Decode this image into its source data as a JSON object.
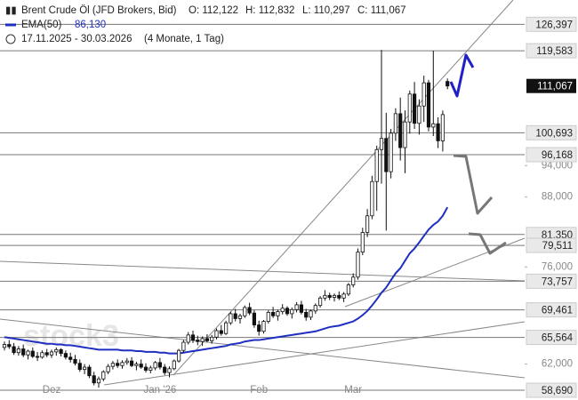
{
  "chart_data": {
    "type": "candlestick",
    "title": "Brent Crude Öl (JFD Brokers, Bid)",
    "ohlc_texts": [
      "O: 112,122",
      "H: 112,832",
      "L: 110,297",
      "C: 111,067"
    ],
    "period": "17.11.2025 - 30.03.2026",
    "period_note": "(4 Monate, 1 Tag)",
    "watermark": "stock3",
    "log_scale": true,
    "ylim": [
      57.5,
      133
    ],
    "yticks": [
      {
        "value": 94,
        "label": "94,000"
      },
      {
        "value": 88,
        "label": "88,000"
      },
      {
        "value": 76,
        "label": "76,000"
      },
      {
        "value": 62,
        "label": "62,000"
      }
    ],
    "levels": [
      {
        "value": 126.397,
        "label": "126,397"
      },
      {
        "value": 119.583,
        "label": "119,583"
      },
      {
        "value": 100.693,
        "label": "100,693"
      },
      {
        "value": 96.168,
        "label": "96,168"
      },
      {
        "value": 81.35,
        "label": "81,350"
      },
      {
        "value": 79.511,
        "label": "79,511"
      },
      {
        "value": 73.757,
        "label": "73,757"
      },
      {
        "value": 69.461,
        "label": "69,461"
      },
      {
        "value": 65.564,
        "label": "65,564"
      },
      {
        "value": 58.69,
        "label": "58,690"
      }
    ],
    "last_price": {
      "value": 111.067,
      "label": "111,067"
    },
    "categories": [
      null,
      null,
      null,
      null,
      null,
      null,
      null,
      null,
      null,
      null,
      "Dez",
      null,
      null,
      null,
      null,
      null,
      null,
      null,
      null,
      null,
      null,
      null,
      null,
      null,
      null,
      null,
      null,
      null,
      null,
      null,
      null,
      null,
      null,
      "Jan '26",
      null,
      null,
      null,
      null,
      null,
      null,
      null,
      null,
      null,
      null,
      null,
      null,
      null,
      null,
      null,
      null,
      null,
      null,
      null,
      null,
      "Feb",
      null,
      null,
      null,
      null,
      null,
      null,
      null,
      null,
      null,
      null,
      null,
      null,
      null,
      null,
      null,
      null,
      null,
      null,
      null,
      "Mar",
      null,
      null,
      null,
      null,
      null,
      null,
      null,
      null,
      null,
      null,
      null,
      null,
      null,
      null,
      null,
      null,
      null,
      null,
      null,
      null
    ],
    "candles": [
      [
        64.2,
        65.0,
        63.8,
        64.6
      ],
      [
        64.6,
        65.2,
        64.0,
        64.3
      ],
      [
        64.3,
        64.8,
        63.2,
        63.5
      ],
      [
        63.5,
        64.4,
        63.1,
        64.0
      ],
      [
        64.0,
        64.6,
        62.9,
        63.2
      ],
      [
        63.2,
        63.9,
        62.6,
        63.7
      ],
      [
        63.7,
        64.2,
        62.8,
        63.0
      ],
      [
        63.0,
        63.6,
        62.4,
        62.9
      ],
      [
        62.9,
        63.8,
        62.7,
        63.5
      ],
      [
        63.5,
        64.0,
        62.9,
        63.2
      ],
      [
        63.2,
        63.9,
        62.8,
        63.6
      ],
      [
        63.6,
        64.2,
        63.1,
        63.9
      ],
      [
        63.9,
        64.1,
        63.0,
        63.4
      ],
      [
        63.4,
        63.8,
        62.6,
        62.9
      ],
      [
        62.9,
        63.5,
        62.2,
        62.6
      ],
      [
        62.6,
        63.2,
        61.8,
        62.1
      ],
      [
        62.1,
        62.6,
        61.0,
        61.3
      ],
      [
        61.3,
        62.0,
        60.7,
        61.6
      ],
      [
        61.6,
        61.9,
        60.2,
        60.5
      ],
      [
        60.5,
        61.0,
        59.3,
        59.6
      ],
      [
        59.6,
        60.4,
        59.0,
        60.1
      ],
      [
        60.1,
        61.2,
        59.8,
        61.0
      ],
      [
        61.0,
        62.0,
        60.7,
        61.7
      ],
      [
        61.7,
        62.4,
        61.3,
        62.1
      ],
      [
        62.1,
        62.6,
        61.5,
        61.8
      ],
      [
        61.8,
        62.5,
        61.4,
        62.2
      ],
      [
        62.2,
        62.8,
        61.9,
        62.4
      ],
      [
        62.4,
        62.9,
        61.6,
        61.8
      ],
      [
        61.8,
        62.3,
        61.2,
        62.0
      ],
      [
        62.0,
        62.6,
        61.4,
        61.6
      ],
      [
        61.6,
        62.1,
        60.9,
        61.2
      ],
      [
        61.2,
        61.8,
        60.8,
        61.5
      ],
      [
        61.5,
        62.4,
        61.2,
        62.2
      ],
      [
        62.2,
        62.8,
        61.3,
        61.6
      ],
      [
        61.6,
        62.0,
        60.6,
        60.9
      ],
      [
        60.9,
        61.7,
        60.3,
        61.4
      ],
      [
        61.4,
        62.6,
        61.2,
        62.4
      ],
      [
        62.4,
        64.0,
        62.2,
        63.8
      ],
      [
        63.8,
        65.2,
        63.5,
        64.9
      ],
      [
        64.9,
        66.3,
        64.6,
        65.9
      ],
      [
        65.9,
        66.5,
        64.8,
        65.2
      ],
      [
        65.2,
        65.8,
        64.5,
        65.0
      ],
      [
        65.0,
        65.7,
        64.4,
        65.4
      ],
      [
        65.4,
        66.0,
        64.9,
        65.1
      ],
      [
        65.1,
        65.9,
        64.7,
        65.6
      ],
      [
        65.6,
        66.8,
        65.3,
        66.5
      ],
      [
        66.5,
        67.3,
        65.8,
        66.1
      ],
      [
        66.1,
        67.9,
        65.9,
        67.6
      ],
      [
        67.6,
        69.2,
        67.3,
        68.9
      ],
      [
        68.9,
        69.6,
        67.8,
        68.2
      ],
      [
        68.2,
        68.9,
        67.5,
        68.6
      ],
      [
        68.6,
        70.1,
        68.3,
        69.8
      ],
      [
        69.8,
        70.5,
        68.7,
        69.0
      ],
      [
        69.0,
        69.4,
        66.9,
        67.3
      ],
      [
        67.3,
        67.9,
        65.8,
        66.4
      ],
      [
        66.4,
        68.0,
        66.1,
        67.8
      ],
      [
        67.8,
        69.4,
        67.5,
        69.1
      ],
      [
        69.1,
        69.9,
        68.3,
        68.6
      ],
      [
        68.6,
        69.5,
        67.9,
        69.2
      ],
      [
        69.2,
        70.3,
        68.8,
        69.7
      ],
      [
        69.7,
        70.0,
        68.6,
        68.9
      ],
      [
        68.9,
        69.8,
        68.2,
        69.5
      ],
      [
        69.5,
        70.6,
        69.1,
        70.2
      ],
      [
        70.2,
        70.8,
        68.8,
        69.1
      ],
      [
        69.1,
        69.6,
        67.9,
        68.4
      ],
      [
        68.4,
        69.5,
        68.0,
        69.3
      ],
      [
        69.3,
        70.4,
        68.9,
        70.1
      ],
      [
        70.1,
        71.5,
        69.8,
        71.2
      ],
      [
        71.2,
        72.4,
        70.8,
        71.6
      ],
      [
        71.6,
        72.0,
        70.9,
        71.3
      ],
      [
        71.3,
        71.9,
        70.7,
        71.6
      ],
      [
        71.6,
        72.2,
        70.9,
        71.2
      ],
      [
        71.2,
        72.1,
        70.6,
        71.8
      ],
      [
        71.8,
        73.5,
        71.5,
        73.2
      ],
      [
        73.2,
        75.0,
        72.8,
        74.4
      ],
      [
        74.4,
        79.0,
        74.0,
        78.4
      ],
      [
        78.4,
        82.5,
        77.9,
        81.7
      ],
      [
        81.7,
        85.8,
        80.9,
        84.6
      ],
      [
        84.6,
        92.0,
        84.0,
        90.9
      ],
      [
        90.9,
        98.0,
        85.5,
        97.2
      ],
      [
        97.2,
        119.8,
        90.5,
        99.5
      ],
      [
        99.5,
        105.0,
        82.0,
        92.8
      ],
      [
        92.8,
        101.5,
        91.5,
        100.6
      ],
      [
        100.6,
        106.0,
        99.0,
        104.8
      ],
      [
        104.8,
        108.4,
        95.0,
        97.6
      ],
      [
        97.6,
        105.5,
        92.5,
        103.0
      ],
      [
        103.0,
        110.0,
        100.5,
        109.2
      ],
      [
        109.2,
        112.0,
        101.5,
        102.7
      ],
      [
        102.7,
        108.0,
        100.3,
        106.5
      ],
      [
        106.5,
        113.5,
        103.0,
        111.8
      ],
      [
        111.8,
        112.5,
        101.0,
        101.9
      ],
      [
        101.9,
        119.6,
        100.0,
        102.6
      ],
      [
        102.6,
        104.0,
        97.5,
        99.0
      ],
      [
        99.0,
        105.5,
        96.8,
        104.6
      ],
      [
        112.122,
        112.832,
        110.297,
        111.067
      ]
    ],
    "series": [
      {
        "name": "EMA(50)",
        "value_label": "86,130",
        "color": "#1f2fbf",
        "values": [
          65.6,
          65.5,
          65.4,
          65.3,
          65.2,
          65.1,
          65.0,
          64.9,
          64.8,
          64.7,
          64.7,
          64.6,
          64.6,
          64.5,
          64.5,
          64.4,
          64.3,
          64.2,
          64.1,
          64.0,
          63.9,
          63.9,
          63.9,
          63.9,
          63.9,
          63.8,
          63.8,
          63.8,
          63.7,
          63.7,
          63.6,
          63.6,
          63.6,
          63.5,
          63.5,
          63.4,
          63.4,
          63.4,
          63.5,
          63.6,
          63.7,
          63.8,
          63.9,
          64.0,
          64.1,
          64.2,
          64.3,
          64.4,
          64.6,
          64.7,
          64.8,
          65.0,
          65.1,
          65.2,
          65.2,
          65.3,
          65.4,
          65.5,
          65.6,
          65.7,
          65.8,
          65.9,
          66.0,
          66.1,
          66.2,
          66.3,
          66.4,
          66.6,
          66.8,
          67.0,
          67.1,
          67.2,
          67.4,
          67.6,
          67.8,
          68.2,
          68.7,
          69.3,
          70.1,
          71.0,
          72.0,
          72.8,
          73.9,
          75.0,
          75.8,
          77.0,
          78.2,
          79.0,
          80.0,
          81.1,
          82.2,
          83.0,
          83.6,
          84.6,
          86.13
        ]
      }
    ]
  }
}
